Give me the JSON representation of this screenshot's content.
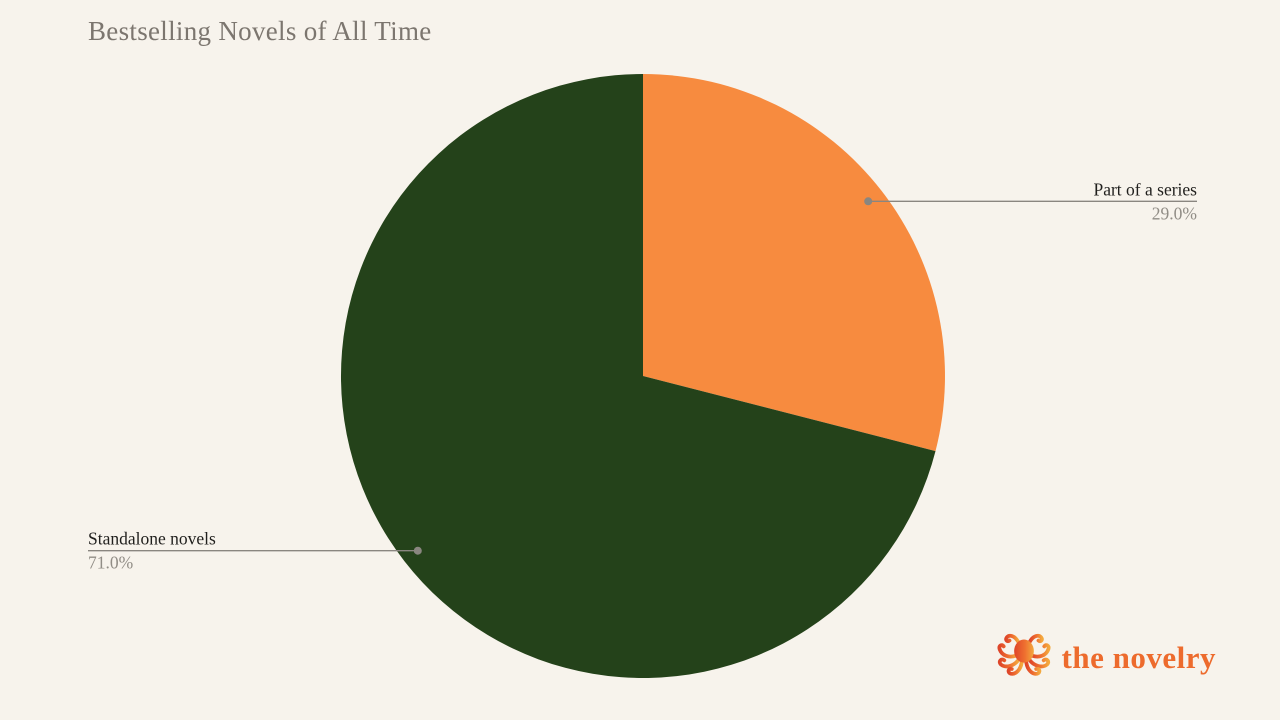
{
  "title": "Bestselling Novels of All Time",
  "chart_data": {
    "type": "pie",
    "title": "Bestselling Novels of All Time",
    "unit": "%",
    "start_angle_deg": 0,
    "direction": "clockwise",
    "legend_position": "none",
    "annotation_style": "outside labels with horizontal leader lines and end dots",
    "slices": [
      {
        "label": "Part of a series",
        "value": 29.0,
        "pct_label": "29.0%",
        "color": "#f78b3f",
        "label_side": "right"
      },
      {
        "label": "Standalone novels",
        "value": 71.0,
        "pct_label": "71.0%",
        "color": "#24421a",
        "label_side": "left"
      }
    ]
  },
  "logo": {
    "text": "the novelry",
    "icon": "octopus"
  },
  "colors": {
    "background": "#f7f3ec",
    "title_text": "#7c766f",
    "label_text": "#201f1d",
    "pct_text": "#918d86",
    "leader_line": "#8a8680",
    "logo_text": "#ed6b2d",
    "logo_gradient_start": "#de4529",
    "logo_gradient_mid": "#ef7030",
    "logo_gradient_end": "#f3a83d"
  }
}
